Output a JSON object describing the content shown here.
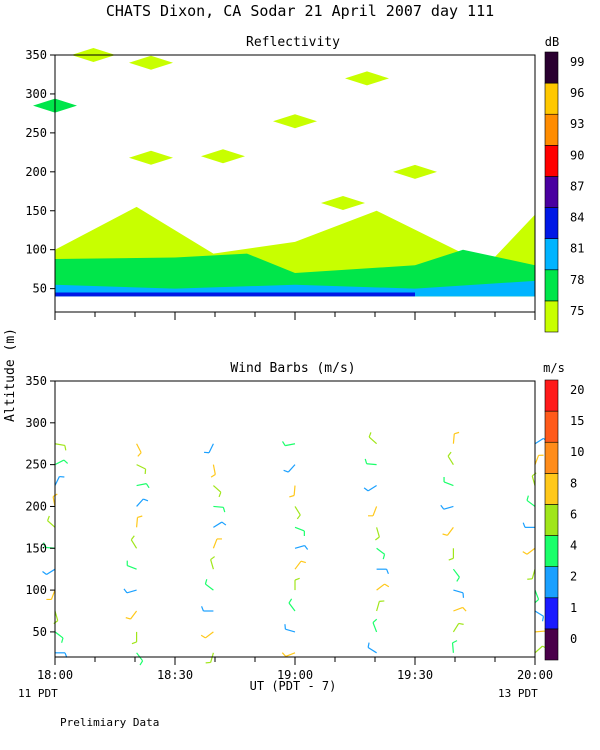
{
  "figure": {
    "title": "CHATS Dixon, CA  Sodar  21 April 2007  day 111",
    "ylabel": "Altitude (m)",
    "xlabel": "UT  (PDT - 7)",
    "left_footer": "11 PDT",
    "right_footer": "13 PDT",
    "note": "Prelimiary Data"
  },
  "chart_data": [
    {
      "type": "heatmap",
      "title": "Reflectivity",
      "colorbar_unit": "dB",
      "colorbar_labels": [
        "99",
        "96",
        "93",
        "90",
        "87",
        "84",
        "81",
        "78",
        "75"
      ],
      "color_scale": [
        "#c8ff00",
        "#00e64a",
        "#00b4ff",
        "#0018e6",
        "#4a00a0",
        "#ff0000",
        "#ff8c00",
        "#ffc800",
        "#2a0030"
      ],
      "x_range": [
        "18:00",
        "20:00"
      ],
      "x_ticks": [
        "18:00",
        "18:30",
        "19:00",
        "19:30",
        "20:00"
      ],
      "ylim": [
        20,
        350
      ],
      "y_ticks": [
        50,
        100,
        150,
        200,
        250,
        300,
        350
      ],
      "layers": [
        {
          "level": "75",
          "x": [
            0.0,
            0.0,
            0.17,
            0.33,
            0.5,
            0.67,
            0.9,
            1.0
          ],
          "y": [
            40,
            100,
            155,
            95,
            110,
            150,
            80,
            145
          ]
        },
        {
          "level": "78",
          "x": [
            0.0,
            0.25,
            0.4,
            0.5,
            0.75,
            0.85,
            1.0
          ],
          "y": [
            88,
            90,
            95,
            70,
            80,
            100,
            80
          ]
        },
        {
          "level": "81",
          "x": [
            0.0,
            0.25,
            0.5,
            0.75,
            1.0
          ],
          "y": [
            55,
            50,
            55,
            50,
            60
          ]
        },
        {
          "level": "84",
          "x": [
            0.0,
            0.5,
            0.75
          ],
          "y": [
            45,
            45,
            45
          ]
        }
      ],
      "patches": [
        {
          "level": "75",
          "x": [
            0.08,
            0.2
          ],
          "y": [
            350,
            340
          ]
        },
        {
          "level": "75",
          "x": [
            0.2,
            0.35
          ],
          "y": [
            218,
            220
          ]
        },
        {
          "level": "75",
          "x": [
            0.5,
            0.65
          ],
          "y": [
            265,
            320
          ]
        },
        {
          "level": "75",
          "x": [
            0.6,
            0.75
          ],
          "y": [
            160,
            200
          ]
        },
        {
          "level": "78",
          "x": [
            0.0
          ],
          "y": [
            285
          ]
        }
      ]
    },
    {
      "type": "scatter",
      "title": "Wind Barbs (m/s)",
      "colorbar_unit": "m/s",
      "colorbar_labels": [
        "20",
        "15",
        "10",
        "8",
        "6",
        "4",
        "2",
        "1",
        "0"
      ],
      "color_scale": [
        "#4a004a",
        "#1a1aff",
        "#1aa0ff",
        "#1aff6a",
        "#a0e61a",
        "#ffc81a",
        "#ff8c1a",
        "#ff5a1a",
        "#ff1a1a"
      ],
      "x_range": [
        "18:00",
        "20:00"
      ],
      "x_ticks": [
        "18:00",
        "18:30",
        "19:00",
        "19:30",
        "20:00"
      ],
      "ylim": [
        20,
        350
      ],
      "y_ticks": [
        50,
        100,
        150,
        200,
        250,
        300,
        350
      ],
      "times": [
        0.0,
        0.17,
        0.33,
        0.5,
        0.67,
        0.83,
        1.0
      ],
      "altitudes": [
        25,
        50,
        75,
        100,
        125,
        150,
        175,
        200,
        225,
        250,
        275
      ]
    }
  ]
}
